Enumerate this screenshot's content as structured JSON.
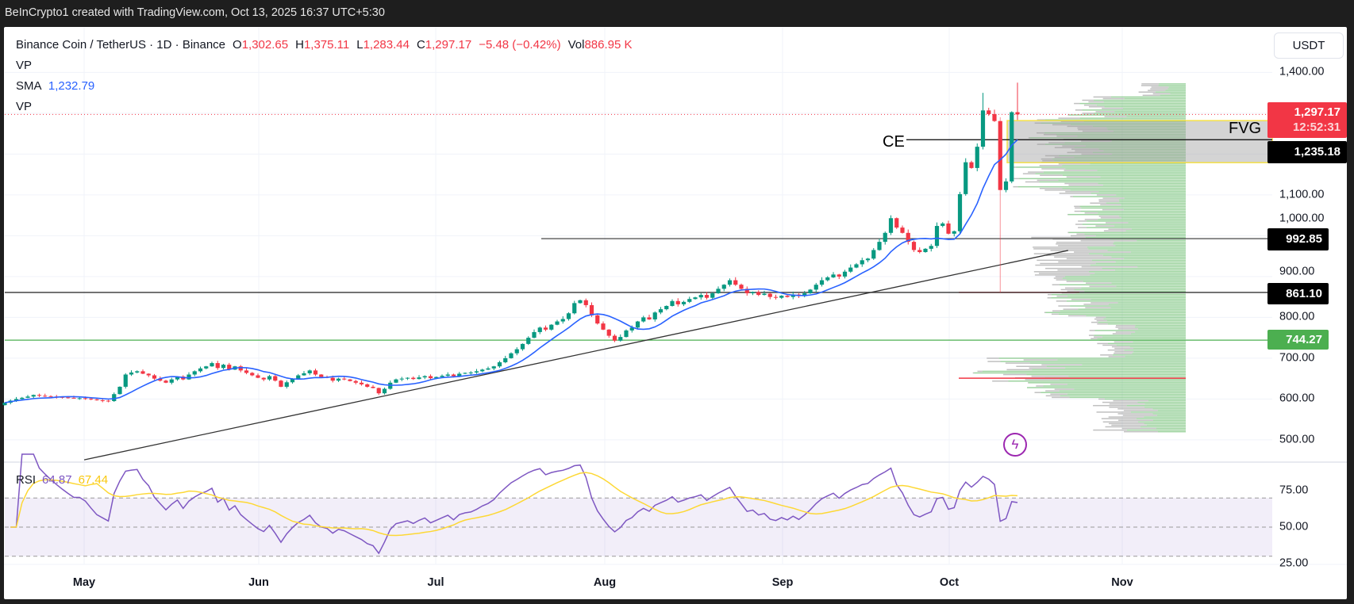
{
  "top_bar": {
    "text": "BeInCrypto1 created with TradingView.com, Oct 13, 2025 16:37 UTC+5:30"
  },
  "legend": {
    "symbol": "Binance Coin / TetherUS · 1D · Binance",
    "o_label": "O",
    "o": "1,302.65",
    "h_label": "H",
    "h": "1,375.11",
    "l_label": "L",
    "l": "1,283.44",
    "c_label": "C",
    "c": "1,297.17",
    "change": "−5.48 (−0.42%)",
    "vol_label": "Vol",
    "vol": "886.95 K",
    "vp1": "VP",
    "sma_label": "SMA",
    "sma_value": "1,232.79",
    "vp2": "VP"
  },
  "currency_button": "USDT",
  "price_axis": {
    "ticks": [
      {
        "value": 1400,
        "label": "1,400.00"
      },
      {
        "value": 1100,
        "label": "1,100.00"
      },
      {
        "value": 1000,
        "label": "1,000.00"
      },
      {
        "value": 900,
        "label": "900.00"
      },
      {
        "value": 800,
        "label": "800.00"
      },
      {
        "value": 700,
        "label": "700.00"
      },
      {
        "value": 600,
        "label": "600.00"
      },
      {
        "value": 500,
        "label": "500.00"
      }
    ]
  },
  "price_labels": {
    "current": "1,297.17",
    "countdown": "12:52:31",
    "ce": "1,235.18",
    "level_1": "992.85",
    "level_2": "861.10",
    "level_3": "744.27"
  },
  "annotations": {
    "ce": "CE",
    "fvg": "FVG"
  },
  "rsi": {
    "label": "RSI",
    "value": "64.87",
    "ma_value": "67.44",
    "ticks": [
      {
        "value": 75,
        "label": "75.00"
      },
      {
        "value": 50,
        "label": "50.00"
      },
      {
        "value": 25,
        "label": "25.00"
      }
    ]
  },
  "time_axis": [
    "May",
    "Jun",
    "Jul",
    "Aug",
    "Sep",
    "Oct",
    "Nov"
  ],
  "colors": {
    "up": "#089981",
    "down": "#f23645",
    "sma": "#2962ff",
    "rsi": "#7e57c2",
    "rsi_ma": "#fdd835",
    "level_green": "#4caf50",
    "fvg_border": "#f5e14a",
    "alert": "#9c27b0"
  },
  "chart_data": {
    "type": "candlestick",
    "title": "Binance Coin / TetherUS · 1D · Binance",
    "ylabel": "USDT",
    "ylim": [
      460,
      1440
    ],
    "first_open": 585,
    "closes": [
      591,
      596,
      600,
      603,
      606,
      610,
      608,
      607,
      606,
      605,
      604,
      603,
      602,
      602,
      601,
      599,
      597,
      596,
      595,
      612,
      630,
      660,
      665,
      668,
      662,
      658,
      650,
      645,
      640,
      648,
      655,
      648,
      660,
      668,
      675,
      680,
      688,
      676,
      684,
      672,
      680,
      670,
      664,
      658,
      652,
      648,
      656,
      645,
      630,
      641,
      650,
      658,
      663,
      670,
      660,
      654,
      652,
      645,
      650,
      648,
      644,
      640,
      636,
      630,
      627,
      614,
      625,
      640,
      648,
      650,
      652,
      649,
      653,
      656,
      651,
      654,
      657,
      660,
      656,
      662,
      664,
      665,
      668,
      672,
      675,
      680,
      690,
      700,
      712,
      722,
      735,
      750,
      764,
      775,
      770,
      782,
      790,
      796,
      810,
      835,
      842,
      830,
      805,
      785,
      770,
      755,
      743,
      752,
      768,
      775,
      790,
      800,
      795,
      812,
      820,
      828,
      840,
      832,
      838,
      845,
      849,
      855,
      848,
      859,
      870,
      880,
      891,
      880,
      870,
      859,
      862,
      855,
      858,
      850,
      848,
      853,
      850,
      856,
      852,
      859,
      868,
      880,
      891,
      898,
      905,
      900,
      912,
      922,
      930,
      940,
      944,
      965,
      985,
      1007,
      1043,
      1020,
      1007,
      985,
      965,
      960,
      968,
      975,
      1024,
      1030,
      1005,
      1011,
      1102,
      1180,
      1166,
      1218,
      1307,
      1298,
      1281,
      1112,
      1133,
      1302.65,
      1297.17
    ],
    "overrides": [
      {
        "index": 170,
        "high": 1350
      },
      {
        "index": 173,
        "high": 1290,
        "low": 861.1
      },
      {
        "index": 176,
        "open": 1302.65,
        "high": 1375.11,
        "low": 1283.44,
        "close": 1297.17
      }
    ],
    "sma_period": 9,
    "rsi_period": 14,
    "rsi_ma_period": 14,
    "rsi_bands": [
      70,
      50,
      30
    ],
    "levels": {
      "current": 1297.17,
      "ce": 1235.18,
      "fvg": [
        1179,
        1282
      ],
      "level_1": 992.85,
      "level_2": 861.1,
      "level_3": 744.27
    },
    "trendline": [
      {
        "index": 13.8,
        "price": 451
      },
      {
        "index": 184.8,
        "price": 964
      }
    ],
    "volume_profile": {
      "low": 520,
      "high": 1372,
      "poc_upper": 861.1,
      "poc_lower": 651
    }
  }
}
